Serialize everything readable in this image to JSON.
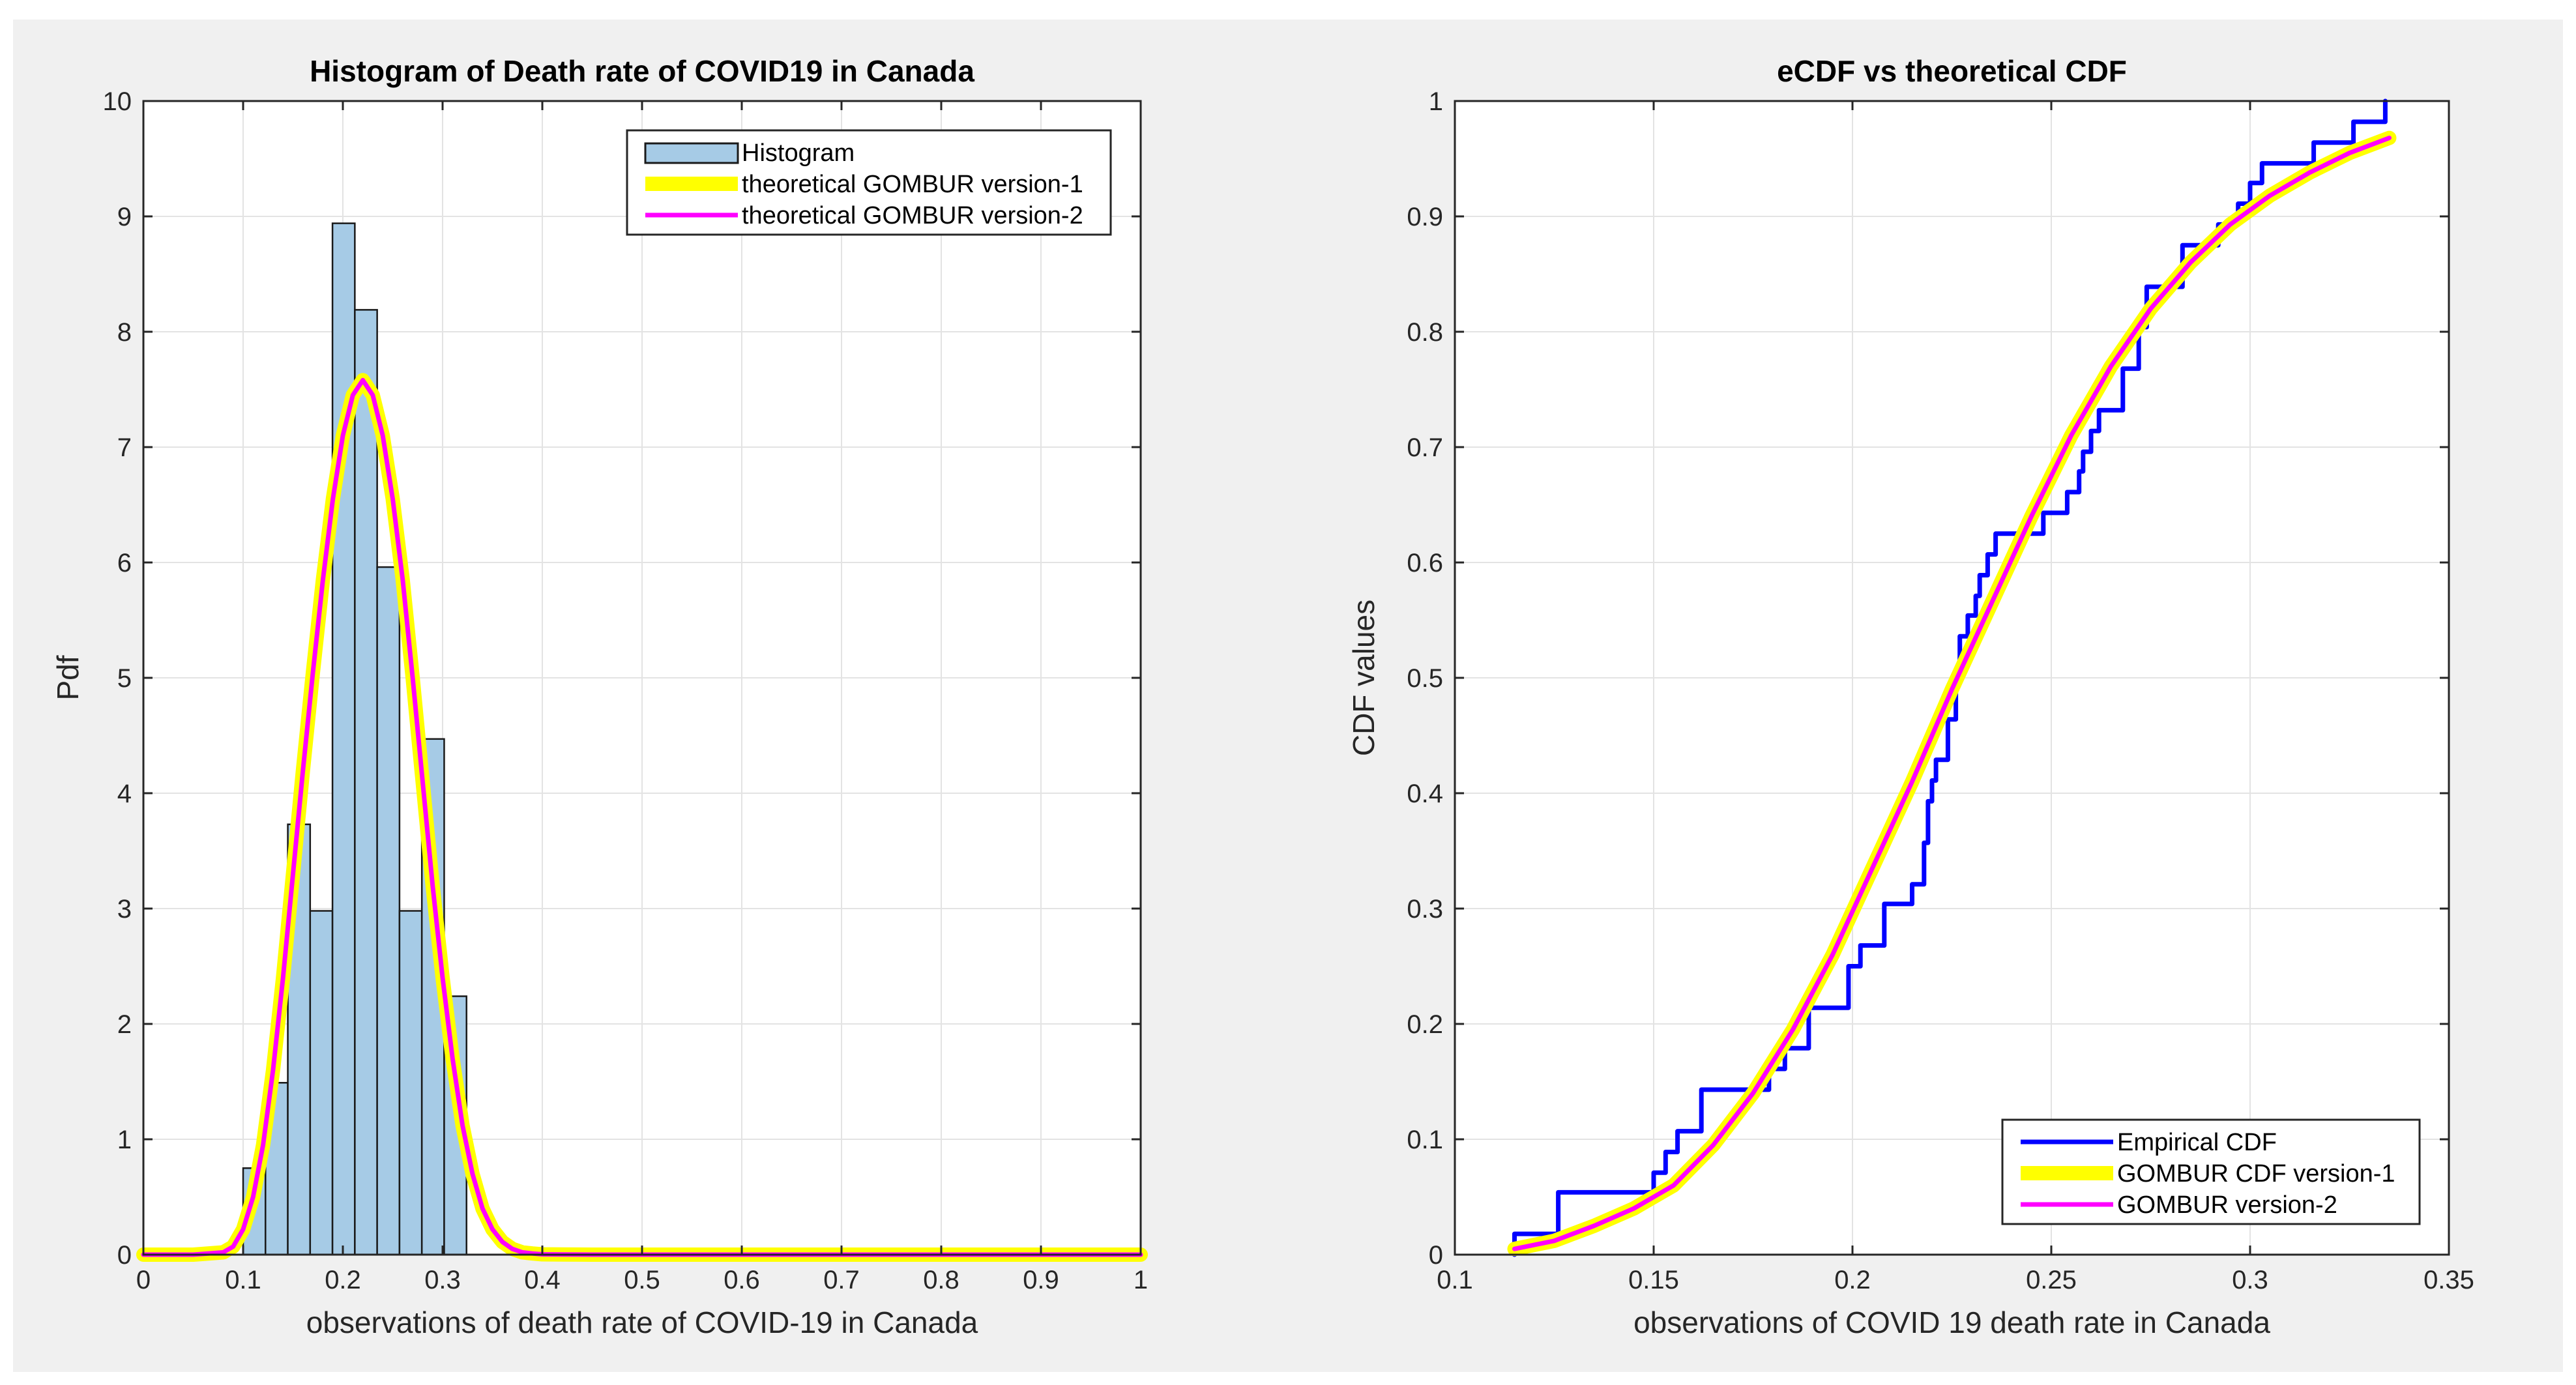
{
  "figure": {
    "background": "#f0f0f0",
    "axes_background": "#ffffff",
    "grid_color": "#e3e3e3"
  },
  "chart_data": [
    {
      "type": "bar",
      "title": "Histogram of Death rate of COVID19 in Canada",
      "xlabel": "observations of death rate of COVID-19 in Canada",
      "ylabel": "Pdf",
      "xlim": [
        0,
        1
      ],
      "ylim": [
        0,
        10
      ],
      "grid": true,
      "legend_position": "top-right",
      "xticks": [
        0,
        0.1,
        0.2,
        0.3,
        0.4,
        0.5,
        0.6,
        0.7,
        0.8,
        0.9,
        1
      ],
      "xtick_labels": [
        "0",
        "0.1",
        "0.2",
        "0.3",
        "0.4",
        "0.5",
        "0.6",
        "0.7",
        "0.8",
        "0.9",
        "1"
      ],
      "yticks": [
        0,
        1,
        2,
        3,
        4,
        5,
        6,
        7,
        8,
        9,
        10
      ],
      "ytick_labels": [
        "0",
        "1",
        "2",
        "3",
        "4",
        "5",
        "6",
        "7",
        "8",
        "9",
        "10"
      ],
      "bins": {
        "edges": [
          0.1,
          0.1224,
          0.1448,
          0.1672,
          0.1896,
          0.212,
          0.2344,
          0.2568,
          0.2792,
          0.3016,
          0.324
        ],
        "values": [
          0.75,
          1.49,
          3.73,
          2.98,
          8.94,
          8.19,
          5.96,
          2.98,
          4.47,
          2.24
        ],
        "color": "#a6cbe6",
        "edge_color": "#1a1a1a"
      },
      "series": [
        {
          "name": "Histogram",
          "kind": "bar",
          "color": "#a6cbe6"
        },
        {
          "name": "theoretical GOMBUR version-1",
          "kind": "line",
          "color": "#ffff00",
          "x": [
            0,
            0.05,
            0.08,
            0.09,
            0.1,
            0.11,
            0.12,
            0.13,
            0.14,
            0.15,
            0.16,
            0.17,
            0.18,
            0.19,
            0.2,
            0.21,
            0.22,
            0.23,
            0.24,
            0.25,
            0.26,
            0.27,
            0.28,
            0.29,
            0.3,
            0.31,
            0.32,
            0.33,
            0.34,
            0.35,
            0.36,
            0.37,
            0.38,
            0.39,
            0.4,
            0.42,
            0.45,
            0.5,
            0.6,
            0.7,
            0.8,
            0.9,
            1
          ],
          "y": [
            0,
            0,
            0.02,
            0.07,
            0.22,
            0.5,
            0.95,
            1.6,
            2.4,
            3.3,
            4.2,
            5.05,
            5.85,
            6.55,
            7.1,
            7.45,
            7.58,
            7.45,
            7.1,
            6.55,
            5.85,
            5.0,
            4.1,
            3.2,
            2.4,
            1.7,
            1.12,
            0.7,
            0.4,
            0.22,
            0.11,
            0.05,
            0.02,
            0.01,
            0.003,
            0.001,
            0,
            0,
            0,
            0,
            0,
            0,
            0
          ]
        },
        {
          "name": "theoretical GOMBUR version-2",
          "kind": "line",
          "color": "#ff00ff",
          "x": [
            0,
            0.05,
            0.08,
            0.09,
            0.1,
            0.11,
            0.12,
            0.13,
            0.14,
            0.15,
            0.16,
            0.17,
            0.18,
            0.19,
            0.2,
            0.21,
            0.22,
            0.23,
            0.24,
            0.25,
            0.26,
            0.27,
            0.28,
            0.29,
            0.3,
            0.31,
            0.32,
            0.33,
            0.34,
            0.35,
            0.36,
            0.37,
            0.38,
            0.39,
            0.4,
            0.42,
            0.45,
            0.5,
            0.6,
            0.7,
            0.8,
            0.9,
            1
          ],
          "y": [
            0,
            0,
            0.02,
            0.07,
            0.22,
            0.5,
            0.95,
            1.6,
            2.4,
            3.3,
            4.2,
            5.05,
            5.85,
            6.55,
            7.1,
            7.45,
            7.58,
            7.45,
            7.1,
            6.55,
            5.85,
            5.0,
            4.1,
            3.2,
            2.4,
            1.7,
            1.12,
            0.7,
            0.4,
            0.22,
            0.11,
            0.05,
            0.02,
            0.01,
            0.003,
            0.001,
            0,
            0,
            0,
            0,
            0,
            0,
            0
          ]
        }
      ]
    },
    {
      "type": "line",
      "title": "eCDF vs theoretical CDF",
      "xlabel": "observations of COVID 19 death rate in Canada",
      "ylabel": "CDF values",
      "xlim": [
        0.1,
        0.35
      ],
      "ylim": [
        0,
        1
      ],
      "grid": true,
      "legend_position": "bottom-right",
      "xticks": [
        0.1,
        0.15,
        0.2,
        0.25,
        0.3,
        0.35
      ],
      "xtick_labels": [
        "0.1",
        "0.15",
        "0.2",
        "0.25",
        "0.3",
        "0.35"
      ],
      "yticks": [
        0,
        0.1,
        0.2,
        0.3,
        0.4,
        0.5,
        0.6,
        0.7,
        0.8,
        0.9,
        1
      ],
      "ytick_labels": [
        "0",
        "0.1",
        "0.2",
        "0.3",
        "0.4",
        "0.5",
        "0.6",
        "0.7",
        "0.8",
        "0.9",
        "1"
      ],
      "series": [
        {
          "name": "Empirical CDF",
          "kind": "step",
          "color": "#0000ff",
          "x": [
            0.115,
            0.115,
            0.126,
            0.126,
            0.15,
            0.15,
            0.153,
            0.153,
            0.156,
            0.156,
            0.162,
            0.162,
            0.179,
            0.179,
            0.183,
            0.183,
            0.189,
            0.189,
            0.199,
            0.199,
            0.202,
            0.202,
            0.208,
            0.208,
            0.215,
            0.215,
            0.218,
            0.218,
            0.219,
            0.219,
            0.22,
            0.22,
            0.221,
            0.221,
            0.224,
            0.224,
            0.226,
            0.226,
            0.227,
            0.227,
            0.229,
            0.229,
            0.231,
            0.231,
            0.232,
            0.232,
            0.234,
            0.234,
            0.236,
            0.236,
            0.248,
            0.248,
            0.254,
            0.254,
            0.257,
            0.257,
            0.258,
            0.258,
            0.26,
            0.26,
            0.262,
            0.262,
            0.268,
            0.268,
            0.272,
            0.272,
            0.274,
            0.274,
            0.283,
            0.283,
            0.292,
            0.292,
            0.297,
            0.297,
            0.3,
            0.3,
            0.303,
            0.303,
            0.316,
            0.316,
            0.326,
            0.326,
            0.334,
            0.334
          ],
          "y": [
            0,
            0.018,
            0.018,
            0.054,
            0.054,
            0.071,
            0.071,
            0.089,
            0.089,
            0.107,
            0.107,
            0.143,
            0.143,
            0.161,
            0.161,
            0.179,
            0.179,
            0.214,
            0.214,
            0.25,
            0.25,
            0.268,
            0.268,
            0.304,
            0.304,
            0.321,
            0.321,
            0.357,
            0.357,
            0.393,
            0.393,
            0.411,
            0.411,
            0.429,
            0.429,
            0.464,
            0.464,
            0.5,
            0.5,
            0.536,
            0.536,
            0.554,
            0.554,
            0.571,
            0.571,
            0.589,
            0.589,
            0.607,
            0.607,
            0.625,
            0.625,
            0.643,
            0.643,
            0.661,
            0.661,
            0.679,
            0.679,
            0.696,
            0.696,
            0.714,
            0.714,
            0.732,
            0.732,
            0.768,
            0.768,
            0.804,
            0.804,
            0.839,
            0.839,
            0.875,
            0.875,
            0.893,
            0.893,
            0.911,
            0.911,
            0.929,
            0.929,
            0.946,
            0.946,
            0.964,
            0.964,
            0.982,
            0.982,
            1.0
          ]
        },
        {
          "name": "GOMBUR CDF version-1",
          "kind": "line",
          "color": "#ffff00",
          "x": [
            0.115,
            0.125,
            0.135,
            0.145,
            0.155,
            0.165,
            0.175,
            0.185,
            0.195,
            0.205,
            0.215,
            0.225,
            0.235,
            0.245,
            0.255,
            0.265,
            0.275,
            0.285,
            0.295,
            0.305,
            0.315,
            0.325,
            0.335
          ],
          "y": [
            0.005,
            0.012,
            0.025,
            0.04,
            0.06,
            0.095,
            0.14,
            0.195,
            0.26,
            0.335,
            0.41,
            0.49,
            0.565,
            0.64,
            0.71,
            0.77,
            0.82,
            0.86,
            0.893,
            0.918,
            0.938,
            0.955,
            0.968
          ]
        },
        {
          "name": "GOMBUR version-2",
          "kind": "line",
          "color": "#ff00ff",
          "x": [
            0.115,
            0.125,
            0.135,
            0.145,
            0.155,
            0.165,
            0.175,
            0.185,
            0.195,
            0.205,
            0.215,
            0.225,
            0.235,
            0.245,
            0.255,
            0.265,
            0.275,
            0.285,
            0.295,
            0.305,
            0.315,
            0.325,
            0.335
          ],
          "y": [
            0.005,
            0.012,
            0.025,
            0.04,
            0.06,
            0.095,
            0.14,
            0.195,
            0.26,
            0.335,
            0.41,
            0.49,
            0.565,
            0.64,
            0.71,
            0.77,
            0.82,
            0.86,
            0.893,
            0.918,
            0.938,
            0.955,
            0.968
          ]
        }
      ]
    }
  ]
}
